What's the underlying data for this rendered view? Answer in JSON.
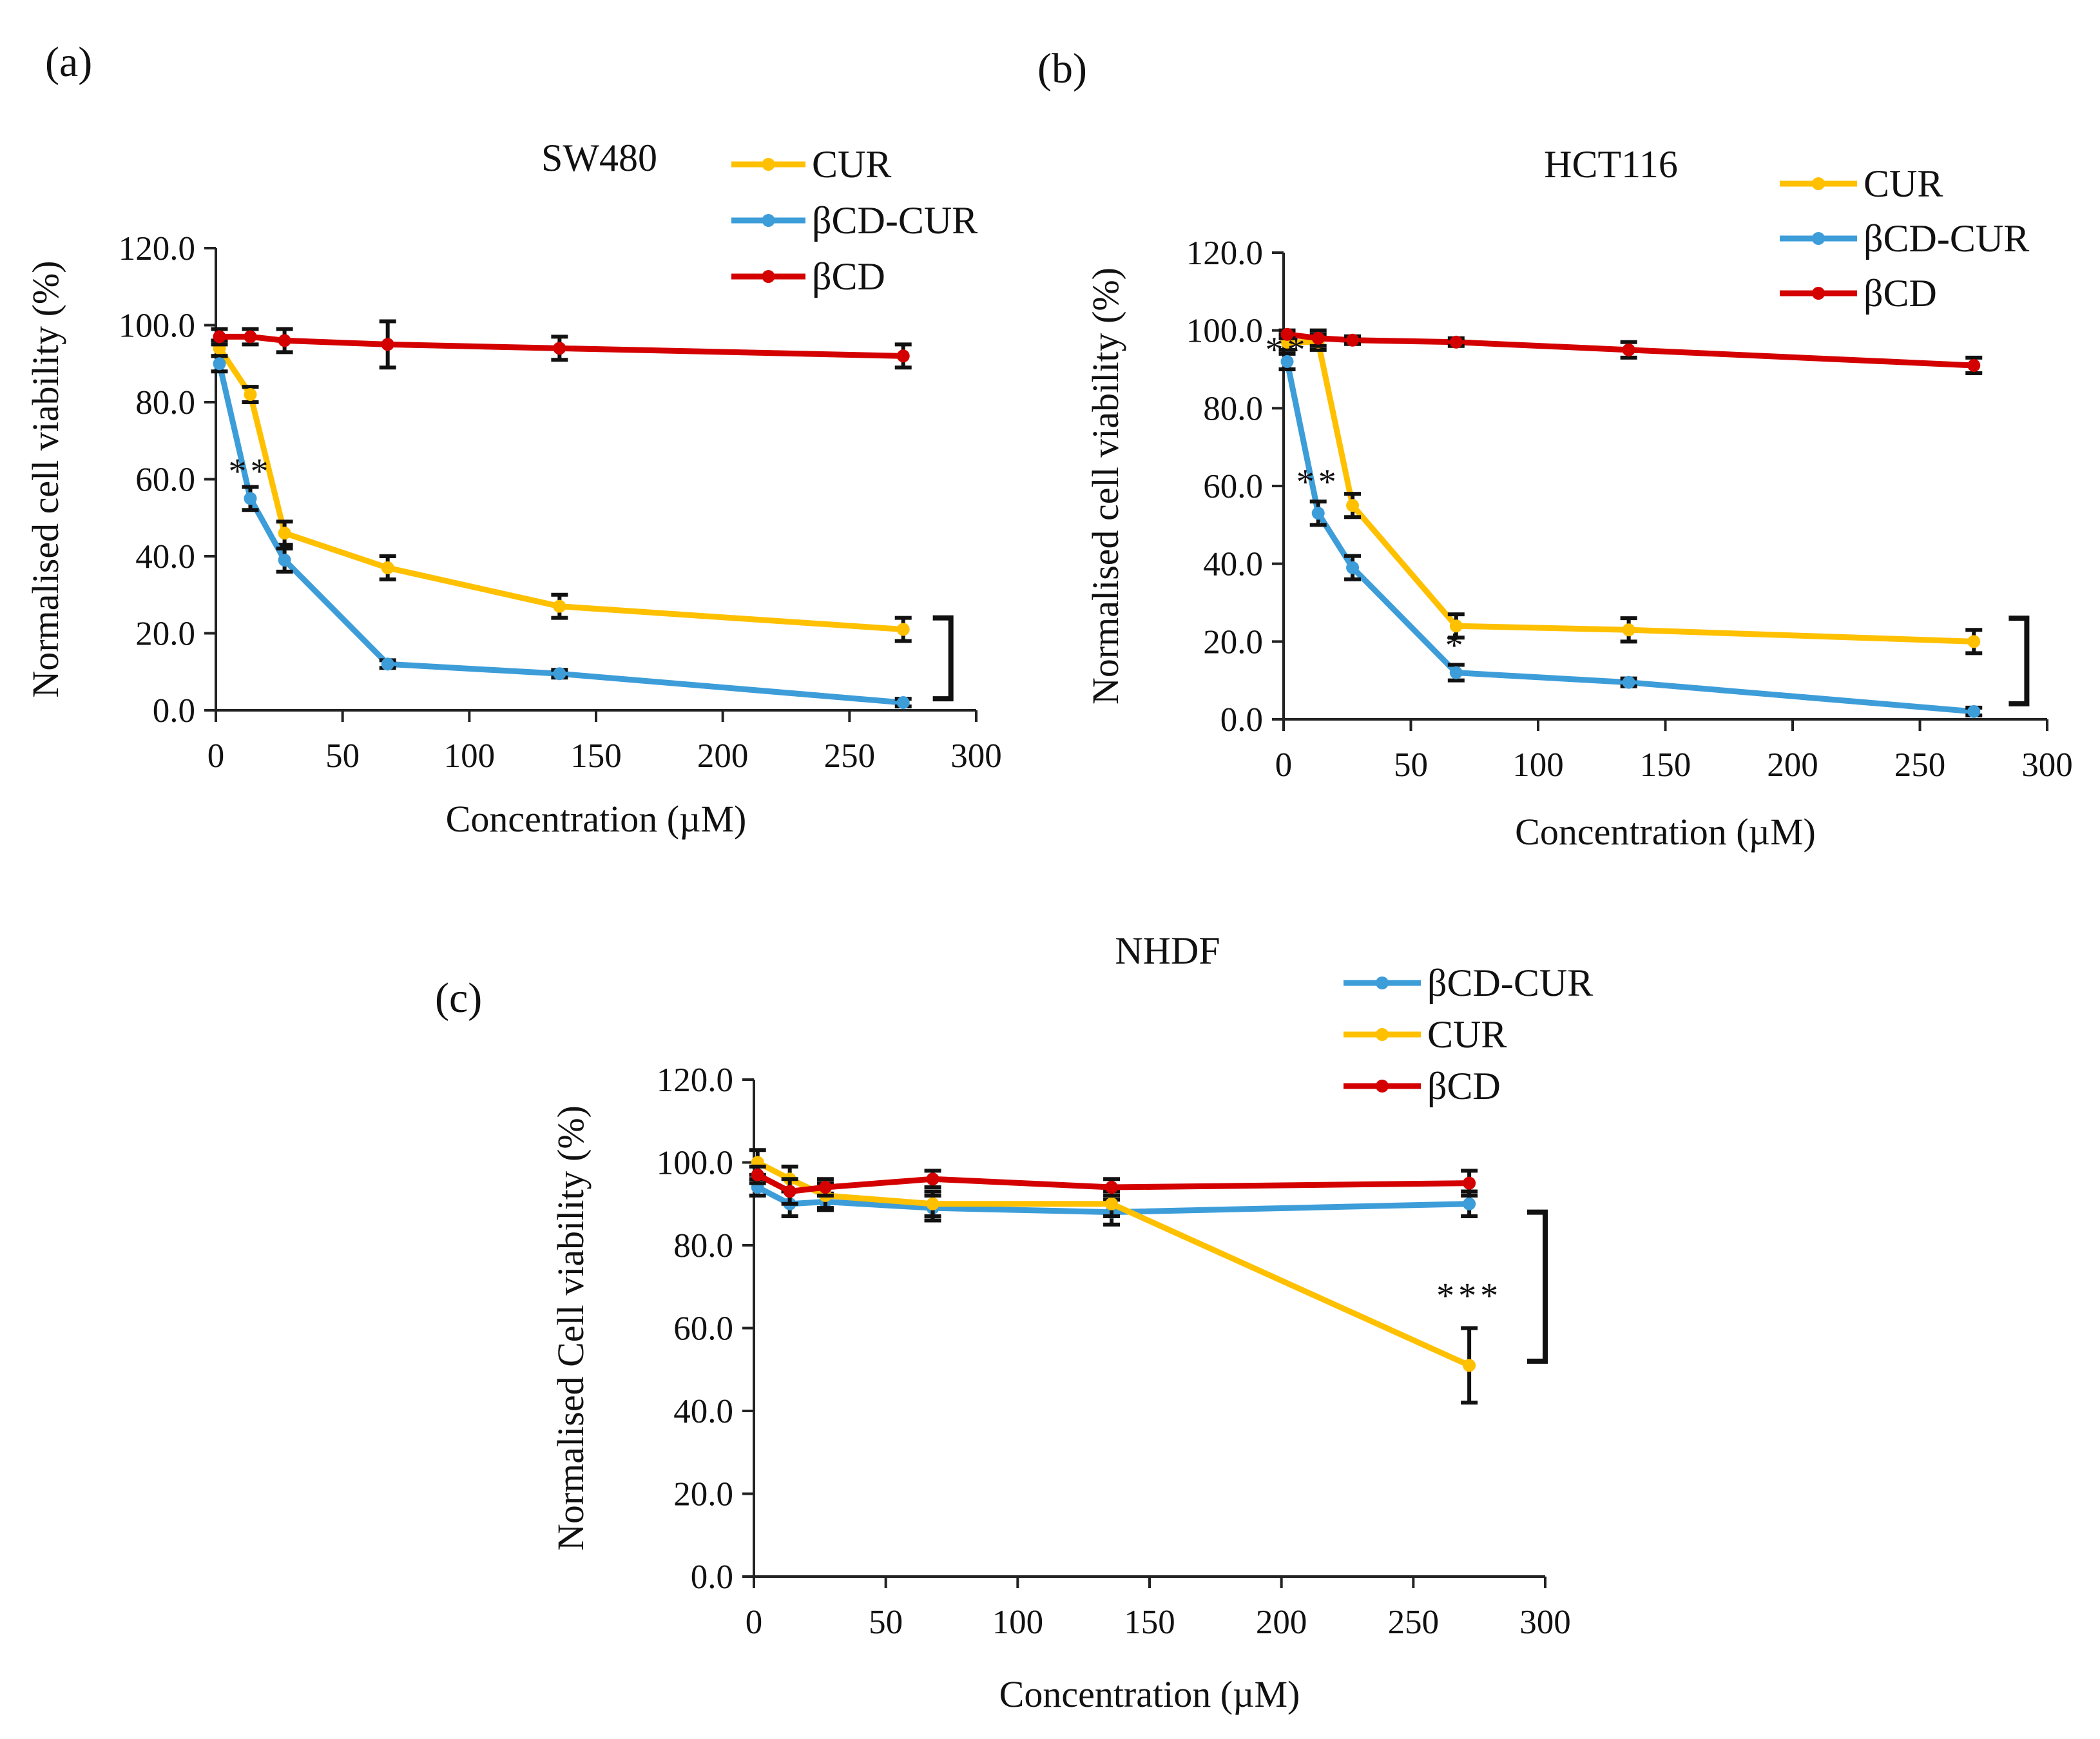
{
  "figure": {
    "panels": [
      "(a)",
      "(b)",
      "(c)"
    ]
  },
  "colors": {
    "CUR": "#FFC000",
    "bCD-CUR": "#3D9DD9",
    "bCD": "#D40000",
    "error": "#111111"
  },
  "chart_data": [
    {
      "panel": "(a)",
      "type": "line",
      "title": "SW480",
      "xlabel": "Concentration (µM)",
      "ylabel": "Normalised cell viability (%)",
      "xlim": [
        0,
        300
      ],
      "ylim": [
        0,
        120
      ],
      "x_ticks": [
        "0",
        "50",
        "100",
        "150",
        "200",
        "250",
        "300"
      ],
      "y_ticks": [
        "0.0",
        "20.0",
        "40.0",
        "60.0",
        "80.0",
        "100.0",
        "120.0"
      ],
      "legend": [
        "CUR",
        "βCD-CUR",
        "βCD"
      ],
      "series": [
        {
          "name": "CUR",
          "color_key": "CUR",
          "x": [
            1.4,
            13.6,
            27.1,
            67.8,
            135.6,
            271.2
          ],
          "values": [
            94,
            82,
            46,
            37,
            27,
            21
          ],
          "errors": [
            2,
            2,
            3,
            3,
            3,
            3
          ]
        },
        {
          "name": "βCD-CUR",
          "color_key": "bCD-CUR",
          "x": [
            1.4,
            13.6,
            27.1,
            67.8,
            135.6,
            271.2
          ],
          "values": [
            90,
            55,
            39,
            12,
            9.5,
            2
          ],
          "errors": [
            2,
            3,
            3,
            1,
            1,
            1
          ]
        },
        {
          "name": "βCD",
          "color_key": "bCD",
          "x": [
            1.4,
            13.6,
            27.1,
            67.8,
            135.6,
            271.2
          ],
          "values": [
            97,
            97,
            96,
            95,
            94,
            92
          ],
          "errors": [
            2,
            2,
            3,
            6,
            3,
            3
          ]
        }
      ],
      "annotations": [
        {
          "text": "**",
          "x": 13.6,
          "y": 59
        },
        {
          "text": "",
          "bracket_x": 290,
          "bracket_y": [
            3,
            24
          ]
        }
      ]
    },
    {
      "panel": "(b)",
      "type": "line",
      "title": "HCT116",
      "xlabel": "Concentration (µM)",
      "ylabel": "Normalised cell viability (%)",
      "xlim": [
        0,
        300
      ],
      "ylim": [
        0,
        120
      ],
      "x_ticks": [
        "0",
        "50",
        "100",
        "150",
        "200",
        "250",
        "300"
      ],
      "y_ticks": [
        "0.0",
        "20.0",
        "40.0",
        "60.0",
        "80.0",
        "100.0",
        "120.0"
      ],
      "legend": [
        "CUR",
        "βCD-CUR",
        "βCD"
      ],
      "series": [
        {
          "name": "CUR",
          "color_key": "CUR",
          "x": [
            1.4,
            13.6,
            27.1,
            67.8,
            135.6,
            271.2
          ],
          "values": [
            97,
            97,
            55,
            24,
            23,
            20
          ],
          "errors": [
            2,
            2,
            3,
            3,
            3,
            3
          ]
        },
        {
          "name": "βCD-CUR",
          "color_key": "bCD-CUR",
          "x": [
            1.4,
            13.6,
            27.1,
            67.8,
            135.6,
            271.2
          ],
          "values": [
            92,
            53,
            39,
            12,
            9.5,
            2
          ],
          "errors": [
            2,
            3,
            3,
            2,
            1,
            1
          ]
        },
        {
          "name": "βCD",
          "color_key": "bCD",
          "x": [
            1.4,
            13.6,
            27.1,
            67.8,
            135.6,
            271.2
          ],
          "values": [
            99,
            98,
            97.5,
            97,
            95,
            91
          ],
          "errors": [
            1,
            2,
            1,
            1,
            2,
            2
          ]
        }
      ],
      "annotations": [
        {
          "text": "**",
          "x": 1.4,
          "y": 92
        },
        {
          "text": "**",
          "x": 13.6,
          "y": 58
        },
        {
          "text": "*",
          "x": 67.8,
          "y": 16
        },
        {
          "text": "",
          "bracket_x": 292,
          "bracket_y": [
            4,
            26
          ]
        }
      ]
    },
    {
      "panel": "(c)",
      "type": "line",
      "title": "NHDF",
      "xlabel": "Concentration (µM)",
      "ylabel": "Normalised Cell viability (%)",
      "xlim": [
        0,
        300
      ],
      "ylim": [
        0,
        120
      ],
      "x_ticks": [
        "0",
        "50",
        "100",
        "150",
        "200",
        "250",
        "300"
      ],
      "y_ticks": [
        "0.0",
        "20.0",
        "40.0",
        "60.0",
        "80.0",
        "100.0",
        "120.0"
      ],
      "legend": [
        "βCD-CUR",
        "CUR",
        "βCD"
      ],
      "series": [
        {
          "name": "βCD-CUR",
          "color_key": "bCD-CUR",
          "x": [
            1.4,
            13.6,
            27.1,
            67.8,
            135.6,
            271.2
          ],
          "values": [
            94,
            90,
            90.5,
            89,
            88,
            90
          ],
          "errors": [
            2,
            3,
            2,
            3,
            3,
            3
          ]
        },
        {
          "name": "CUR",
          "color_key": "CUR",
          "x": [
            1.4,
            13.6,
            27.1,
            67.8,
            135.6,
            271.2
          ],
          "values": [
            100,
            96,
            92,
            90,
            90,
            51
          ],
          "errors": [
            3,
            3,
            3,
            3,
            3,
            9
          ]
        },
        {
          "name": "βCD",
          "color_key": "bCD",
          "x": [
            1.4,
            13.6,
            27.1,
            67.8,
            135.6,
            271.2
          ],
          "values": [
            97,
            93,
            94,
            96,
            94,
            95
          ],
          "errors": [
            2,
            3,
            2,
            2,
            2,
            3
          ]
        }
      ],
      "annotations": [
        {
          "text": "***",
          "x": 271.2,
          "y": 65
        },
        {
          "text": "",
          "bracket_x": 300,
          "bracket_y": [
            52,
            88
          ]
        }
      ]
    }
  ]
}
